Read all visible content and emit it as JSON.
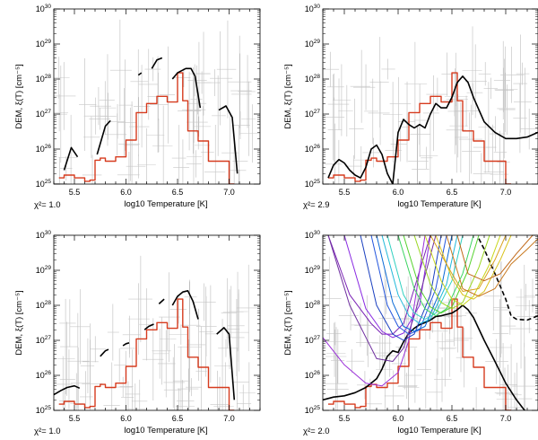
{
  "chart_data": [
    {
      "type": "line",
      "xlabel": "log10 Temperature [K]",
      "ylabel": "DEM, ξ(T) [cm⁻⁵]",
      "xlim": [
        5.3,
        7.3
      ],
      "ylim": [
        1e+25,
        1e+30
      ],
      "yscale": "log",
      "x_ticks": [
        "5.5",
        "6.0",
        "6.5",
        "7.0"
      ],
      "y_ticks": [
        "10^25",
        "10^26",
        "10^27",
        "10^28",
        "10^29",
        "10^30"
      ],
      "chi2": "χ²= 1.0",
      "series": [
        {
          "role": "step",
          "color": "#d63b1e",
          "x": [
            5.35,
            5.4,
            5.5,
            5.6,
            5.65,
            5.7,
            5.75,
            5.8,
            5.9,
            6.0,
            6.1,
            6.2,
            6.3,
            6.4,
            6.5,
            6.55,
            6.6,
            6.7,
            6.8,
            6.9,
            7.0
          ],
          "y": [
            1.5e+25,
            1.8e+25,
            1.5e+25,
            1.2e+25,
            1.3e+25,
            4.8e+25,
            5.5e+25,
            4.5e+25,
            6e+25,
            1.8e+26,
            1.1e+27,
            2e+27,
            3.2e+27,
            2.2e+27,
            1.5e+28,
            2.4e+27,
            3.3e+26,
            1.7e+26,
            4.5e+25,
            4.5e+25,
            1e+25
          ]
        },
        {
          "role": "fit-segment",
          "color": "#000000",
          "x": [
            5.4,
            5.47,
            5.53
          ],
          "y": [
            2.5e+25,
            1.1e+26,
            6e+25
          ]
        },
        {
          "role": "fit-segment",
          "color": "#000000",
          "x": [
            5.72,
            5.8,
            5.85
          ],
          "y": [
            7e+25,
            4.5e+26,
            6.5e+26
          ]
        },
        {
          "role": "fit-segment",
          "color": "#000000",
          "x": [
            6.12,
            6.15
          ],
          "y": [
            1.3e+28,
            1.5e+28
          ]
        },
        {
          "role": "fit-segment",
          "color": "#000000",
          "x": [
            6.25,
            6.3,
            6.35
          ],
          "y": [
            2e+28,
            3.5e+28,
            4e+28
          ]
        },
        {
          "role": "fit-segment",
          "color": "#000000",
          "x": [
            6.45,
            6.5,
            6.58,
            6.63,
            6.67,
            6.72
          ],
          "y": [
            1e+28,
            1.5e+28,
            2e+28,
            2e+28,
            1.2e+28,
            1.5e+27
          ]
        },
        {
          "role": "fit-segment",
          "color": "#000000",
          "x": [
            6.9,
            6.97,
            7.03,
            7.08
          ],
          "y": [
            1.3e+27,
            1.7e+27,
            8e+26,
            2e+25
          ]
        }
      ]
    },
    {
      "type": "line",
      "xlabel": "log10 Temperature [K]",
      "ylabel": "DEM, ξ(T) [cm⁻⁵]",
      "xlim": [
        5.3,
        7.3
      ],
      "ylim": [
        1e+25,
        1e+30
      ],
      "yscale": "log",
      "x_ticks": [
        "5.5",
        "6.0",
        "6.5",
        "7.0"
      ],
      "y_ticks": [
        "10^25",
        "10^26",
        "10^27",
        "10^28",
        "10^29",
        "10^30"
      ],
      "chi2": "χ²= 2.9",
      "series": [
        {
          "role": "step",
          "color": "#d63b1e",
          "x": [
            5.35,
            5.4,
            5.5,
            5.6,
            5.65,
            5.7,
            5.75,
            5.8,
            5.9,
            6.0,
            6.1,
            6.2,
            6.3,
            6.4,
            6.5,
            6.55,
            6.6,
            6.7,
            6.8,
            6.9,
            7.0
          ],
          "y": [
            1.5e+25,
            1.8e+25,
            1.5e+25,
            1.2e+25,
            1.3e+25,
            4.8e+25,
            5.5e+25,
            4.5e+25,
            6e+25,
            1.8e+26,
            1.1e+27,
            2e+27,
            3.2e+27,
            2.2e+27,
            1.5e+28,
            2.4e+27,
            3.3e+26,
            1.7e+26,
            4.5e+25,
            4.5e+25,
            1e+25
          ]
        },
        {
          "role": "fit",
          "color": "#000000",
          "x": [
            5.35,
            5.4,
            5.45,
            5.5,
            5.55,
            5.6,
            5.65,
            5.7,
            5.75,
            5.8,
            5.85,
            5.9,
            5.95,
            6.0,
            6.05,
            6.1,
            6.15,
            6.2,
            6.25,
            6.3,
            6.35,
            6.4,
            6.45,
            6.5,
            6.55,
            6.6,
            6.65,
            6.7,
            6.8,
            6.9,
            7.0,
            7.1,
            7.2,
            7.3
          ],
          "y": [
            1.5e+25,
            3.5e+25,
            5e+25,
            4e+25,
            2.5e+25,
            1.8e+25,
            1.5e+25,
            3e+25,
            1e+26,
            1.3e+26,
            7e+25,
            2e+25,
            1e+25,
            3e+26,
            7e+26,
            5e+26,
            4e+26,
            5e+26,
            4e+26,
            1e+27,
            2e+27,
            1.5e+27,
            1.5e+27,
            3e+27,
            8e+27,
            1.2e+28,
            8e+27,
            3e+27,
            6e+26,
            3e+26,
            2e+26,
            2e+26,
            2.2e+26,
            3e+26
          ]
        }
      ]
    },
    {
      "type": "line",
      "xlabel": "log10 Temperature [K]",
      "ylabel": "DEM, ξ(T) [cm⁻⁵]",
      "xlim": [
        5.3,
        7.3
      ],
      "ylim": [
        1e+25,
        1e+30
      ],
      "yscale": "log",
      "x_ticks": [
        "5.5",
        "6.0",
        "6.5",
        "7.0"
      ],
      "y_ticks": [
        "10^25",
        "10^26",
        "10^27",
        "10^28",
        "10^29",
        "10^30"
      ],
      "chi2": "χ²= 1.0",
      "series": [
        {
          "role": "step",
          "color": "#d63b1e",
          "x": [
            5.35,
            5.4,
            5.5,
            5.6,
            5.65,
            5.7,
            5.75,
            5.8,
            5.9,
            6.0,
            6.1,
            6.2,
            6.3,
            6.4,
            6.5,
            6.55,
            6.6,
            6.7,
            6.8,
            6.9,
            7.0
          ],
          "y": [
            1.5e+25,
            1.8e+25,
            1.5e+25,
            1.2e+25,
            1.3e+25,
            4.8e+25,
            5.5e+25,
            4.5e+25,
            6e+25,
            1.8e+26,
            1.1e+27,
            2e+27,
            3.2e+27,
            2.2e+27,
            1.5e+28,
            2.4e+27,
            3.3e+26,
            1.7e+26,
            4.5e+25,
            4.5e+25,
            1e+25
          ]
        },
        {
          "role": "fit-segment",
          "color": "#000000",
          "x": [
            5.3,
            5.37,
            5.43,
            5.5,
            5.55
          ],
          "y": [
            2.8e+25,
            3.7e+25,
            4.5e+25,
            5e+25,
            4.3e+25
          ]
        },
        {
          "role": "fit-segment",
          "color": "#000000",
          "x": [
            5.75,
            5.8,
            5.83
          ],
          "y": [
            3.5e+26,
            5e+26,
            5.5e+26
          ]
        },
        {
          "role": "fit-segment",
          "color": "#000000",
          "x": [
            5.97,
            6.0,
            6.03
          ],
          "y": [
            7e+26,
            8e+26,
            8.5e+26
          ]
        },
        {
          "role": "fit-segment",
          "color": "#000000",
          "x": [
            6.18,
            6.22,
            6.27
          ],
          "y": [
            2e+27,
            2.5e+27,
            2.9e+27
          ]
        },
        {
          "role": "fit-segment",
          "color": "#000000",
          "x": [
            6.32,
            6.37
          ],
          "y": [
            1.1e+28,
            1.5e+28
          ]
        },
        {
          "role": "fit-segment",
          "color": "#000000",
          "x": [
            6.45,
            6.5,
            6.55,
            6.6,
            6.65,
            6.7
          ],
          "y": [
            1e+28,
            1.8e+28,
            2.4e+28,
            2.6e+28,
            1.3e+28,
            4e+27
          ]
        },
        {
          "role": "fit-segment",
          "color": "#000000",
          "x": [
            6.88,
            6.95,
            7.0,
            7.05
          ],
          "y": [
            1.5e+27,
            2.3e+27,
            1.5e+27,
            2e+25
          ]
        }
      ]
    },
    {
      "type": "line",
      "xlabel": "log10 Temperature [K]",
      "ylabel": "DEM, ξ(T) [cm⁻⁵]",
      "xlim": [
        5.3,
        7.3
      ],
      "ylim": [
        1e+25,
        1e+30
      ],
      "yscale": "log",
      "x_ticks": [
        "5.5",
        "6.0",
        "6.5",
        "7.0"
      ],
      "y_ticks": [
        "10^25",
        "10^26",
        "10^27",
        "10^28",
        "10^29",
        "10^30"
      ],
      "chi2": "χ²= 2.0",
      "series": [
        {
          "role": "step",
          "color": "#d63b1e",
          "x": [
            5.35,
            5.4,
            5.5,
            5.6,
            5.65,
            5.7,
            5.75,
            5.8,
            5.9,
            6.0,
            6.1,
            6.2,
            6.3,
            6.4,
            6.5,
            6.55,
            6.6,
            6.7,
            6.8,
            6.9,
            7.0
          ],
          "y": [
            1.5e+25,
            1.8e+25,
            1.5e+25,
            1.2e+25,
            1.3e+25,
            4.8e+25,
            5.5e+25,
            4.5e+25,
            6e+25,
            1.8e+26,
            1.1e+27,
            2e+27,
            3.2e+27,
            2.2e+27,
            1.5e+28,
            2.4e+27,
            3.3e+26,
            1.7e+26,
            4.5e+25,
            4.5e+25,
            1e+25
          ]
        },
        {
          "role": "fit",
          "color": "#000000",
          "x": [
            5.3,
            5.4,
            5.5,
            5.6,
            5.7,
            5.8,
            5.85,
            5.9,
            5.95,
            6.0,
            6.05,
            6.1,
            6.15,
            6.2,
            6.25,
            6.3,
            6.35,
            6.4,
            6.45,
            6.5,
            6.55,
            6.6,
            6.65,
            6.7,
            6.8,
            6.9,
            7.0,
            7.1,
            7.2,
            7.3
          ],
          "y": [
            2e+25,
            2.4e+25,
            2.6e+25,
            3.2e+25,
            4.5e+25,
            8e+25,
            1.5e+26,
            3.5e+26,
            5e+26,
            4.5e+26,
            9e+26,
            1.6e+27,
            2.2e+27,
            2.8e+27,
            3.2e+27,
            3.8e+27,
            4.8e+27,
            5e+27,
            5.5e+27,
            6e+27,
            7.5e+27,
            1e+28,
            7.5e+27,
            4.5e+27,
            1e+27,
            2.5e+26,
            6e+25,
            2e+25,
            8e+24,
            4e+24
          ]
        },
        {
          "role": "dashed",
          "color": "#000000",
          "x": [
            6.75,
            6.8,
            6.9,
            7.0,
            7.05,
            7.1,
            7.2,
            7.3
          ],
          "y": [
            8e+29,
            4e+29,
            8e+28,
            1.5e+28,
            5e+27,
            4e+27,
            3.8e+27,
            5e+27
          ]
        },
        {
          "role": "em-loci",
          "color": "#7a22b5",
          "x": [
            5.35,
            5.55,
            5.75,
            5.85,
            5.95,
            6.05,
            6.15,
            6.3
          ],
          "y": [
            1e+30,
            2e+28,
            3e+27,
            1.5e+27,
            1.5e+27,
            3e+27,
            3e+28,
            1e+30
          ]
        },
        {
          "role": "em-loci",
          "color": "#8a2be2",
          "x": [
            5.5,
            5.7,
            5.85,
            5.95,
            6.05,
            6.2,
            6.3
          ],
          "y": [
            1e+30,
            8e+27,
            1.8e+27,
            1.2e+27,
            1.6e+27,
            1e+28,
            1e+30
          ]
        },
        {
          "role": "em-loci",
          "color": "#9b30d9",
          "x": [
            5.3,
            5.5,
            5.7,
            5.85,
            6.0,
            6.1,
            6.25
          ],
          "y": [
            1.2e+27,
            2e+26,
            6e+25,
            5e+25,
            1.2e+26,
            1e+27,
            1e+30
          ]
        },
        {
          "role": "em-loci",
          "color": "#7030a0",
          "x": [
            5.35,
            5.55,
            5.8,
            5.95,
            6.05,
            6.15,
            6.35
          ],
          "y": [
            1e+30,
            1e+28,
            3e+26,
            2.5e+26,
            6e+26,
            5e+27,
            1e+30
          ]
        },
        {
          "role": "em-loci",
          "color": "#1a3fbf",
          "x": [
            5.65,
            5.8,
            5.95,
            6.05,
            6.15,
            6.3,
            6.4
          ],
          "y": [
            1e+30,
            1e+28,
            1.5e+27,
            1e+27,
            1.5e+27,
            2e+28,
            1e+30
          ]
        },
        {
          "role": "em-loci",
          "color": "#2255dd",
          "x": [
            5.75,
            5.9,
            6.0,
            6.1,
            6.2,
            6.35,
            6.45
          ],
          "y": [
            1e+30,
            1e+28,
            2.5e+27,
            1.5e+27,
            2e+27,
            3e+28,
            1e+30
          ]
        },
        {
          "role": "em-loci",
          "color": "#0a6ad6",
          "x": [
            5.8,
            5.95,
            6.05,
            6.15,
            6.25,
            6.4,
            6.5
          ],
          "y": [
            1e+30,
            1.2e+28,
            2.5e+27,
            1.8e+27,
            2.5e+27,
            3e+28,
            1e+30
          ]
        },
        {
          "role": "em-loci",
          "color": "#21b8d9",
          "x": [
            5.85,
            6.0,
            6.1,
            6.2,
            6.3,
            6.45,
            6.55
          ],
          "y": [
            1e+30,
            2e+28,
            5e+27,
            3e+27,
            4e+27,
            4e+28,
            1e+30
          ]
        },
        {
          "role": "em-loci",
          "color": "#2fd0c0",
          "x": [
            5.9,
            6.05,
            6.15,
            6.25,
            6.35,
            6.5,
            6.6
          ],
          "y": [
            1e+30,
            2e+28,
            6e+27,
            4e+27,
            6e+27,
            5e+28,
            1e+30
          ]
        },
        {
          "role": "em-loci",
          "color": "#3ad460",
          "x": [
            6.0,
            6.15,
            6.25,
            6.35,
            6.45,
            6.6,
            6.7
          ],
          "y": [
            1e+30,
            3e+28,
            8e+27,
            5e+27,
            8e+27,
            8e+28,
            1e+30
          ]
        },
        {
          "role": "em-loci",
          "color": "#55d22e",
          "x": [
            6.05,
            6.2,
            6.3,
            6.4,
            6.5,
            6.65,
            6.75
          ],
          "y": [
            1e+30,
            3e+28,
            9e+27,
            6e+27,
            9e+27,
            1e+29,
            1e+30
          ]
        },
        {
          "role": "em-loci",
          "color": "#9ad620",
          "x": [
            6.15,
            6.3,
            6.4,
            6.5,
            6.6,
            6.75,
            6.85
          ],
          "y": [
            1e+30,
            4e+28,
            1.2e+28,
            8e+27,
            1.2e+28,
            1.2e+29,
            1e+30
          ]
        },
        {
          "role": "em-loci",
          "color": "#c8d61a",
          "x": [
            6.25,
            6.4,
            6.5,
            6.6,
            6.7,
            6.85,
            6.95
          ],
          "y": [
            1e+30,
            5e+28,
            1.5e+28,
            1e+28,
            1.8e+28,
            1.5e+29,
            1e+30
          ]
        },
        {
          "role": "em-loci",
          "color": "#d8c21a",
          "x": [
            6.35,
            6.5,
            6.6,
            6.7,
            6.8,
            6.95,
            7.05
          ],
          "y": [
            1e+30,
            6e+28,
            2e+28,
            1.5e+28,
            2.5e+28,
            2e+29,
            1e+30
          ]
        },
        {
          "role": "em-loci",
          "color": "#d9a21f",
          "x": [
            6.3,
            6.5,
            6.6,
            6.75,
            6.9,
            7.0
          ],
          "y": [
            1e+30,
            8e+28,
            2.5e+28,
            3e+28,
            2e+29,
            1e+30
          ]
        },
        {
          "role": "em-loci",
          "color": "#c8781e",
          "x": [
            6.45,
            6.6,
            6.75,
            6.9,
            7.05,
            7.2,
            7.3
          ],
          "y": [
            1e+30,
            3e+28,
            1.8e+28,
            3e+28,
            1.5e+29,
            4e+29,
            8e+29
          ]
        },
        {
          "role": "em-loci",
          "color": "#c06818",
          "x": [
            6.55,
            6.65,
            6.8,
            6.95,
            7.1,
            7.25
          ],
          "y": [
            1e+30,
            8e+28,
            5e+28,
            8e+28,
            3e+29,
            1e+30
          ]
        }
      ]
    }
  ]
}
